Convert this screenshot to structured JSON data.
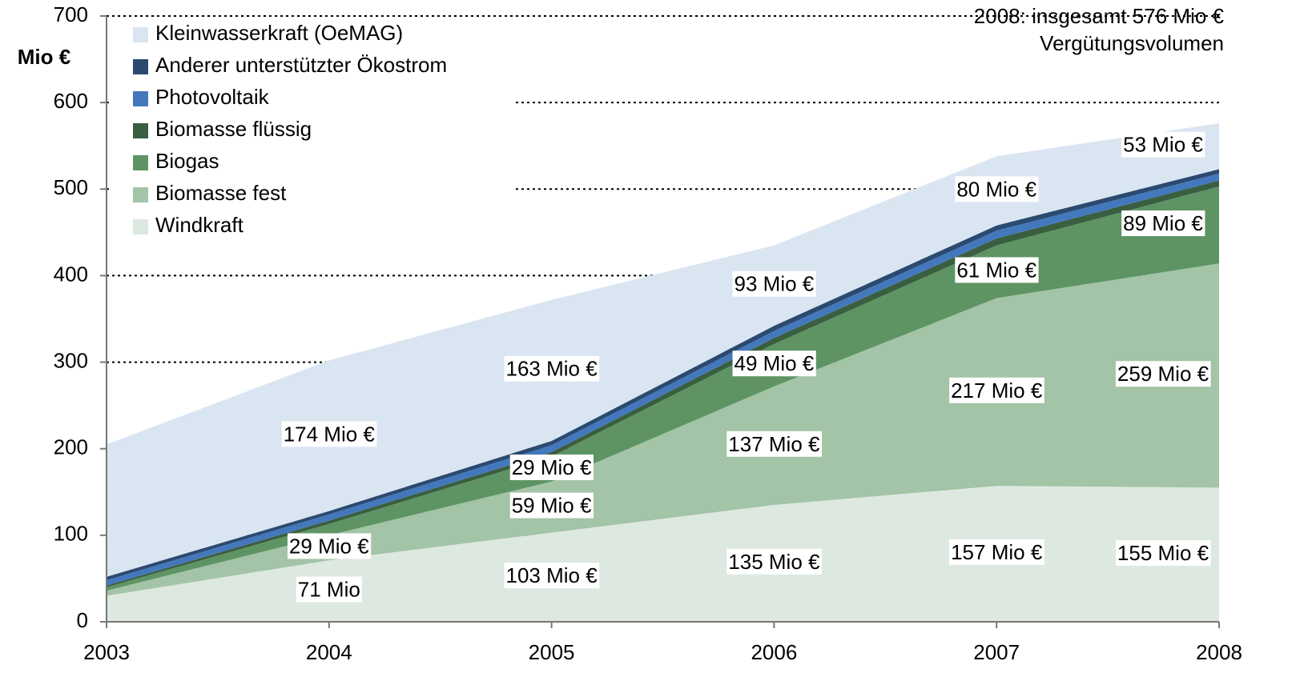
{
  "chart_data": {
    "type": "area",
    "ylabel": "Mio €",
    "annotation": [
      "2008: insgesamt 576 Mio €",
      "Vergütungsvolumen"
    ],
    "categories": [
      "2003",
      "2004",
      "2005",
      "2006",
      "2007",
      "2008"
    ],
    "stacked": true,
    "series": [
      {
        "name": "Windkraft",
        "color": "#dde9e0",
        "values": [
          30,
          71,
          103,
          135,
          157,
          155
        ],
        "value_labels": [
          null,
          "71 Mio",
          "103 Mio €",
          "135 Mio €",
          "157 Mio €",
          "155 Mio €"
        ]
      },
      {
        "name": "Biomasse fest",
        "color": "#a3c4a6",
        "values": [
          6,
          29,
          59,
          137,
          217,
          259
        ],
        "value_labels": [
          null,
          "29 Mio €",
          "59 Mio €",
          "137 Mio €",
          "217 Mio €",
          "259 Mio €"
        ]
      },
      {
        "name": "Biogas",
        "color": "#5e9464",
        "values": [
          4,
          13,
          29,
          49,
          61,
          89
        ],
        "value_labels": [
          null,
          null,
          "29 Mio €",
          "49 Mio €",
          "61 Mio €",
          "89 Mio €"
        ]
      },
      {
        "name": "Biomasse flüssig",
        "color": "#3a5e40",
        "values": [
          2,
          4,
          5,
          7,
          8,
          7
        ]
      },
      {
        "name": "Photovoltaik",
        "color": "#4478bd",
        "values": [
          6,
          7,
          8,
          8,
          9,
          8
        ]
      },
      {
        "name": "Anderer unterstützter Ökostrom",
        "color": "#2b4a70",
        "values": [
          4,
          4,
          5,
          6,
          6,
          5
        ]
      },
      {
        "name": "Kleinwasserkraft (OeMAG)",
        "color": "#dae5f2",
        "values": [
          153,
          174,
          163,
          93,
          80,
          53
        ],
        "value_labels": [
          null,
          "174 Mio €",
          "163 Mio €",
          "93 Mio €",
          "80 Mio €",
          "53 Mio €"
        ]
      }
    ],
    "ylim": [
      0,
      700
    ],
    "yticks": [
      0,
      100,
      200,
      300,
      400,
      500,
      600,
      700
    ],
    "grid": true
  }
}
